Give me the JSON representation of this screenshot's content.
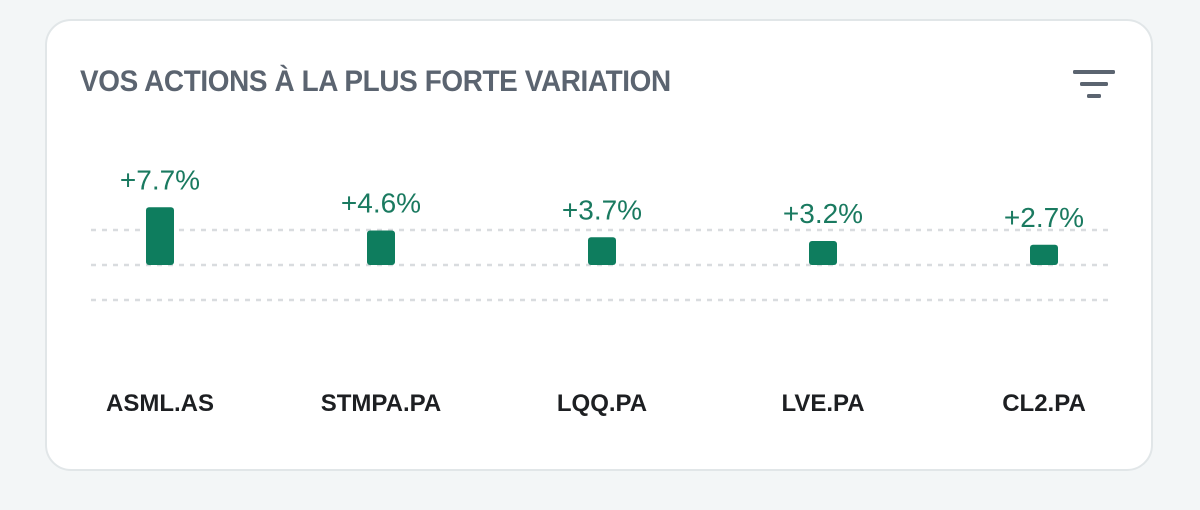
{
  "widget": {
    "title": "VOS ACTIONS À LA PLUS FORTE VARIATION",
    "filter_icon": "filter-icon"
  },
  "colors": {
    "bar": "#0e7d5e",
    "value_text": "#1a7a60",
    "gridline": "#d9dcdf"
  },
  "chart_data": {
    "type": "bar",
    "title": "VOS ACTIONS À LA PLUS FORTE VARIATION",
    "categories": [
      "ASML.AS",
      "STMPA.PA",
      "LQQ.PA",
      "LVE.PA",
      "CL2.PA"
    ],
    "values": [
      7.7,
      4.6,
      3.7,
      3.2,
      2.7
    ],
    "value_labels": [
      "+7.7%",
      "+4.6%",
      "+3.7%",
      "+3.2%",
      "+2.7%"
    ],
    "unit": "%",
    "xlabel": "",
    "ylabel": "",
    "ylim": [
      -7.7,
      7.7
    ],
    "grid": true
  }
}
